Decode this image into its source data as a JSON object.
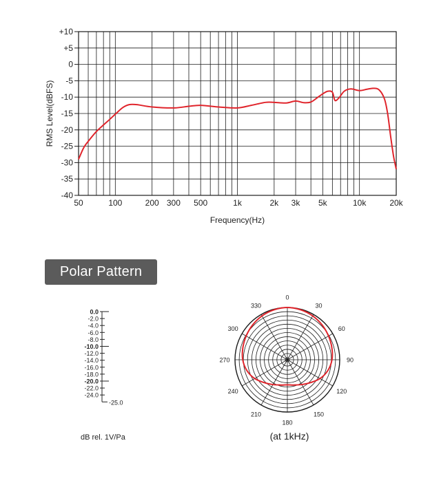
{
  "chart_data": [
    {
      "type": "line",
      "xscale": "log",
      "xlim": [
        50,
        20000
      ],
      "ylim": [
        -40,
        10
      ],
      "xlabel": "Frequency(Hz)",
      "ylabel": "RMS Level(dBFS)",
      "x_ticks": [
        {
          "v": 50,
          "label": "50"
        },
        {
          "v": 100,
          "label": "100"
        },
        {
          "v": 200,
          "label": "200"
        },
        {
          "v": 300,
          "label": "300"
        },
        {
          "v": 500,
          "label": "500"
        },
        {
          "v": 1000,
          "label": "1k"
        },
        {
          "v": 2000,
          "label": "2k"
        },
        {
          "v": 3000,
          "label": "3k"
        },
        {
          "v": 5000,
          "label": "5k"
        },
        {
          "v": 10000,
          "label": "10k"
        },
        {
          "v": 20000,
          "label": "20k"
        }
      ],
      "y_ticks": [
        {
          "v": 10,
          "label": "+10"
        },
        {
          "v": 5,
          "label": "+5"
        },
        {
          "v": 0,
          "label": "0"
        },
        {
          "v": -5,
          "label": "-5"
        },
        {
          "v": -10,
          "label": "-10"
        },
        {
          "v": -15,
          "label": "-15"
        },
        {
          "v": -20,
          "label": "-20"
        },
        {
          "v": -25,
          "label": "-25"
        },
        {
          "v": -30,
          "label": "-30"
        },
        {
          "v": -35,
          "label": "-35"
        },
        {
          "v": -40,
          "label": "-40"
        }
      ],
      "grid": true,
      "series": [
        {
          "color": "#e0242b",
          "x": [
            50,
            55,
            60,
            70,
            80,
            90,
            100,
            115,
            130,
            150,
            200,
            300,
            400,
            500,
            700,
            1000,
            1300,
            1700,
            2000,
            2500,
            3000,
            3500,
            4000,
            4500,
            5000,
            5500,
            6000,
            6300,
            6800,
            7500,
            8500,
            10000,
            11500,
            13000,
            14500,
            16000,
            17000,
            18000,
            19000,
            20000
          ],
          "y": [
            -29,
            -25.5,
            -23.5,
            -20.5,
            -18.5,
            -16.8,
            -15.2,
            -13.2,
            -12.3,
            -12.3,
            -13,
            -13.3,
            -12.8,
            -12.5,
            -13,
            -13.3,
            -12.5,
            -11.6,
            -11.6,
            -11.8,
            -11.2,
            -11.7,
            -11.5,
            -10.2,
            -9,
            -8.2,
            -8.5,
            -11,
            -10.2,
            -8.2,
            -7.5,
            -8,
            -7.6,
            -7.3,
            -7.8,
            -10.5,
            -15,
            -22,
            -28,
            -32
          ]
        }
      ]
    },
    {
      "type": "polar",
      "angle_labels": [
        "0",
        "30",
        "60",
        "90",
        "120",
        "150",
        "180",
        "210",
        "240",
        "270",
        "300",
        "330"
      ],
      "rlim_db": [
        -25,
        0
      ],
      "caption": "(at 1kHz)",
      "series": [
        {
          "color": "#e0242b",
          "angle_deg": [
            0,
            15,
            30,
            45,
            60,
            75,
            90,
            105,
            120,
            135,
            150,
            165,
            180,
            195,
            210,
            225,
            240,
            255,
            270,
            285,
            300,
            315,
            330,
            345
          ],
          "level_db": [
            0,
            -0.3,
            -0.8,
            -1.5,
            -2.3,
            -3,
            -3.7,
            -5,
            -7,
            -9.5,
            -11.3,
            -12.5,
            -13,
            -12.5,
            -11.3,
            -9.5,
            -7,
            -5,
            -3.7,
            -3,
            -2.3,
            -1.5,
            -0.8,
            -0.3
          ]
        }
      ]
    }
  ],
  "polar_section": {
    "header": "Polar Pattern",
    "scale_labels": [
      {
        "text": "0.0",
        "bold": true
      },
      {
        "text": "-2.0",
        "bold": false
      },
      {
        "text": "-4.0",
        "bold": false
      },
      {
        "text": "-6.0",
        "bold": false
      },
      {
        "text": "-8.0",
        "bold": false
      },
      {
        "text": "-10.0",
        "bold": true
      },
      {
        "text": "-12.0",
        "bold": false
      },
      {
        "text": "-14.0",
        "bold": false
      },
      {
        "text": "-16.0",
        "bold": false
      },
      {
        "text": "-18.0",
        "bold": false
      },
      {
        "text": "-20.0",
        "bold": true
      },
      {
        "text": "-22.0",
        "bold": false
      },
      {
        "text": "-24.0",
        "bold": false
      }
    ],
    "scale_end_label": "-25.0",
    "scale_unit": "dB rel. 1V/Pa"
  },
  "colors": {
    "curve": "#e0242b",
    "grid": "#1a1a1a",
    "header_bg": "#5b5b5b",
    "header_text": "#ffffff"
  }
}
